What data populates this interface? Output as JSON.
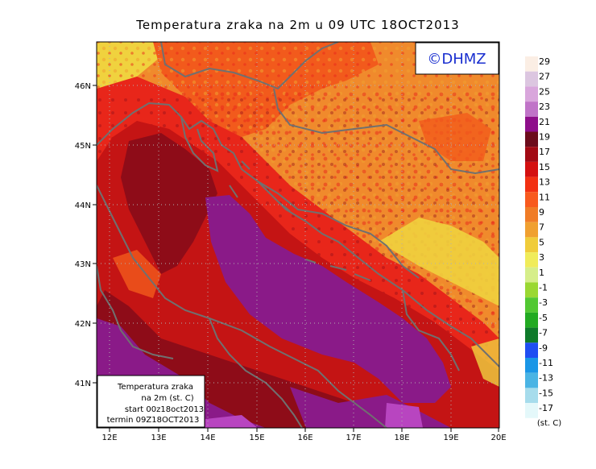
{
  "title": "Temperatura zraka na 2m u 09 UTC 18OCT2013",
  "watermark": "©DHMZ",
  "watermark_color": "#1a2fd0",
  "info_box": {
    "line1": "Temperatura zraka",
    "line2": "na 2m (st. C)",
    "line3": "start 00z18oct2013",
    "line4": "termin 09Z18OCT2013"
  },
  "axes": {
    "x_ticks": [
      "12E",
      "13E",
      "14E",
      "15E",
      "16E",
      "17E",
      "18E",
      "19E",
      "20E"
    ],
    "y_ticks": [
      "46N",
      "45N",
      "44N",
      "43N",
      "42N",
      "41N"
    ]
  },
  "colorbar": {
    "unit": "(st. C)",
    "labels": [
      "29",
      "27",
      "25",
      "23",
      "21",
      "19",
      "17",
      "15",
      "13",
      "11",
      "9",
      "7",
      "5",
      "3",
      "1",
      "-1",
      "-3",
      "-5",
      "-7",
      "-9",
      "-11",
      "-13",
      "-15",
      "-17"
    ],
    "colors": [
      "#fbeee4",
      "#dcc6e0",
      "#d9a6dc",
      "#c074c8",
      "#8e0e8a",
      "#6c0c1c",
      "#a20a14",
      "#d41010",
      "#f23012",
      "#f85a1e",
      "#f07c26",
      "#f0a030",
      "#f0cc3a",
      "#f0ec5a",
      "#d6ee8a",
      "#9ad832",
      "#52c832",
      "#22aa22",
      "#0e7a2a",
      "#1f4ef2",
      "#1a96e6",
      "#4ab4e4",
      "#a6dcec",
      "#e4f8fa"
    ]
  },
  "palette": {
    "purple": "#8a1a88",
    "light_purple": "#b845c0",
    "dark_red": "#8e0c18",
    "red": "#c41414",
    "bright_red": "#e8261a",
    "orange_red": "#f25a1c",
    "orange": "#f08a2c",
    "yellow": "#f0d23e",
    "coast": "#707070"
  }
}
